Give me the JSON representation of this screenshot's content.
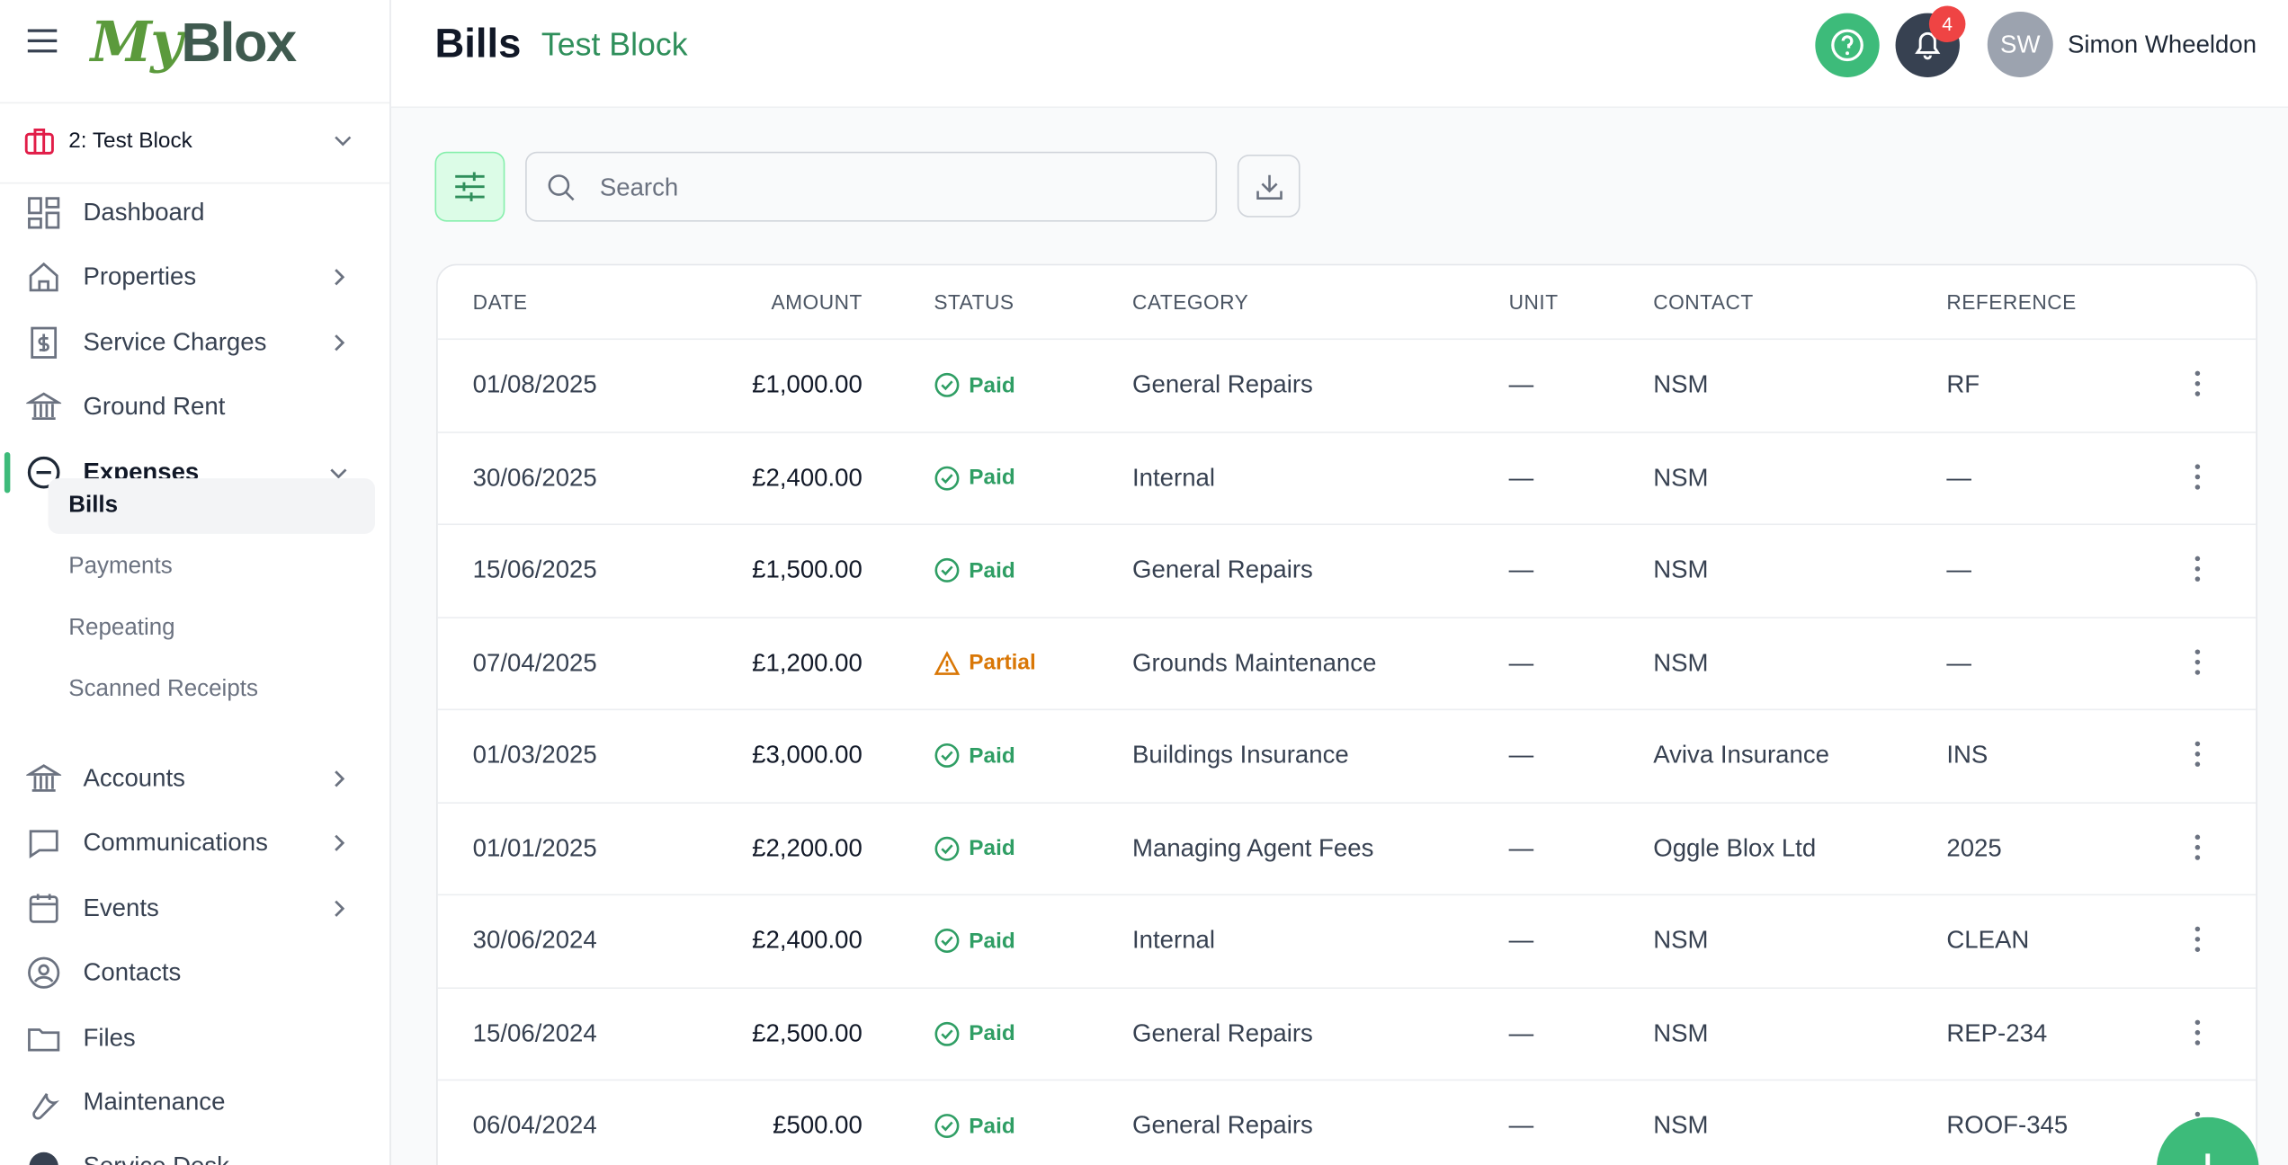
{
  "header": {
    "logo_a": "My",
    "logo_b": "Blox",
    "title": "Bills",
    "subtitle": "Test Block",
    "notifications": "4",
    "initials": "SW",
    "user": "Simon Wheeldon"
  },
  "sidebar": {
    "block": "2: Test Block",
    "nav": [
      {
        "label": "Dashboard",
        "submenu": false
      },
      {
        "label": "Properties",
        "submenu": true
      },
      {
        "label": "Service Charges",
        "submenu": true
      },
      {
        "label": "Ground Rent",
        "submenu": false
      },
      {
        "label": "Expenses",
        "submenu": true,
        "open": true,
        "active": true,
        "children": [
          "Bills",
          "Payments",
          "Repeating",
          "Scanned Receipts"
        ]
      },
      {
        "label": "Accounts",
        "submenu": true
      },
      {
        "label": "Communications",
        "submenu": true
      },
      {
        "label": "Events",
        "submenu": true
      },
      {
        "label": "Contacts",
        "submenu": false
      },
      {
        "label": "Files",
        "submenu": false
      },
      {
        "label": "Maintenance",
        "submenu": false
      },
      {
        "label": "Service Desk",
        "submenu": false
      }
    ]
  },
  "toolbar": {
    "search_placeholder": "Search"
  },
  "table": {
    "columns": [
      "DATE",
      "AMOUNT",
      "STATUS",
      "CATEGORY",
      "UNIT",
      "CONTACT",
      "REFERENCE"
    ],
    "rows": [
      {
        "date": "01/08/2025",
        "amount": "£1,000.00",
        "status": "Paid",
        "status_color": "#2f9e64",
        "category": "General Repairs",
        "unit": "—",
        "contact": "NSM",
        "reference": "RF"
      },
      {
        "date": "30/06/2025",
        "amount": "£2,400.00",
        "status": "Paid",
        "status_color": "#2f9e64",
        "category": "Internal",
        "unit": "—",
        "contact": "NSM",
        "reference": "—"
      },
      {
        "date": "15/06/2025",
        "amount": "£1,500.00",
        "status": "Paid",
        "status_color": "#2f9e64",
        "category": "General Repairs",
        "unit": "—",
        "contact": "NSM",
        "reference": "—"
      },
      {
        "date": "07/04/2025",
        "amount": "£1,200.00",
        "status": "Partial",
        "status_color": "#d97706",
        "category": "Grounds Maintenance",
        "unit": "—",
        "contact": "NSM",
        "reference": "—"
      },
      {
        "date": "01/03/2025",
        "amount": "£3,000.00",
        "status": "Paid",
        "status_color": "#2f9e64",
        "category": "Buildings Insurance",
        "unit": "—",
        "contact": "Aviva Insurance",
        "reference": "INS"
      },
      {
        "date": "01/01/2025",
        "amount": "£2,200.00",
        "status": "Paid",
        "status_color": "#2f9e64",
        "category": "Managing Agent Fees",
        "unit": "—",
        "contact": "Oggle Blox Ltd",
        "reference": "2025"
      },
      {
        "date": "30/06/2024",
        "amount": "£2,400.00",
        "status": "Paid",
        "status_color": "#2f9e64",
        "category": "Internal",
        "unit": "—",
        "contact": "NSM",
        "reference": "CLEAN"
      },
      {
        "date": "15/06/2024",
        "amount": "£2,500.00",
        "status": "Paid",
        "status_color": "#2f9e64",
        "category": "General Repairs",
        "unit": "—",
        "contact": "NSM",
        "reference": "REP-234"
      },
      {
        "date": "06/04/2024",
        "amount": "£500.00",
        "status": "Paid",
        "status_color": "#2f9e64",
        "category": "General Repairs",
        "unit": "—",
        "contact": "NSM",
        "reference": "ROOF-345"
      }
    ]
  }
}
